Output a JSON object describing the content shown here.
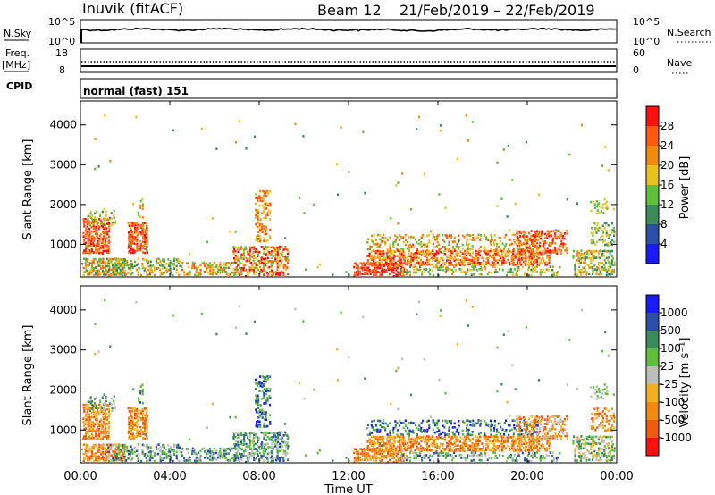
{
  "header": {
    "station": "Inuvik (fitACF)",
    "beam": "Beam 12",
    "dates": "21/Feb/2019 – 22/Feb/2019"
  },
  "top_panels": {
    "nsky_label": "N.Sky",
    "nsky_ticks": [
      "10^5",
      "10^0"
    ],
    "nsearch_label": "N.Search",
    "nsearch_ticks": [
      "10^5",
      "10^0"
    ],
    "freq_label": "Freq.",
    "freq_unit": "[MHz]",
    "freq_ticks": [
      "18",
      "8"
    ],
    "nave_label": "Nave",
    "nave_ticks": [
      "60",
      "0"
    ],
    "cpid_label": "CPID",
    "cpid_value": "normal (fast) 151"
  },
  "colors": {
    "power": [
      "#1a1aff",
      "#2b4fa8",
      "#3a8c5a",
      "#5fbf3a",
      "#e8c320",
      "#f08a10",
      "#ff5a10",
      "#ff1010"
    ],
    "velocity": [
      "#ff1010",
      "#f05a10",
      "#f08a10",
      "#f0b020",
      "#bdbdbd",
      "#5fbf3a",
      "#3a8c5a",
      "#2b4fa8",
      "#1a1aff"
    ]
  },
  "chart_data": [
    {
      "type": "heatmap",
      "quantity": "power",
      "ylabel": "Slant Range [km]",
      "yticks": [
        "4000",
        "3000",
        "2000",
        "1000"
      ],
      "ylim": [
        180,
        4600
      ],
      "xlim": [
        "00:00",
        "24:00"
      ],
      "xticks": [
        "00:00",
        "04:00",
        "08:00",
        "12:00",
        "16:00",
        "20:00",
        "00:00"
      ],
      "colorbar_label": "Power [dB]",
      "colorbar_ticks": [
        "28",
        "24",
        "20",
        "16",
        "12",
        "8",
        "4"
      ],
      "colorbar_range": [
        0,
        32
      ]
    },
    {
      "type": "heatmap",
      "quantity": "velocity",
      "ylabel": "Slant Range [km]",
      "yticks": [
        "4000",
        "3000",
        "2000",
        "1000"
      ],
      "ylim": [
        180,
        4600
      ],
      "xlim": [
        "00:00",
        "24:00"
      ],
      "xticks": [
        "00:00",
        "04:00",
        "08:00",
        "12:00",
        "16:00",
        "20:00",
        "00:00"
      ],
      "xlabel": "Time UT",
      "colorbar_label": "Velocity [m s⁻¹]",
      "colorbar_ticks": [
        "1000",
        "500",
        "100",
        "25",
        "-25",
        "-100",
        "-500",
        "-1000"
      ]
    }
  ]
}
